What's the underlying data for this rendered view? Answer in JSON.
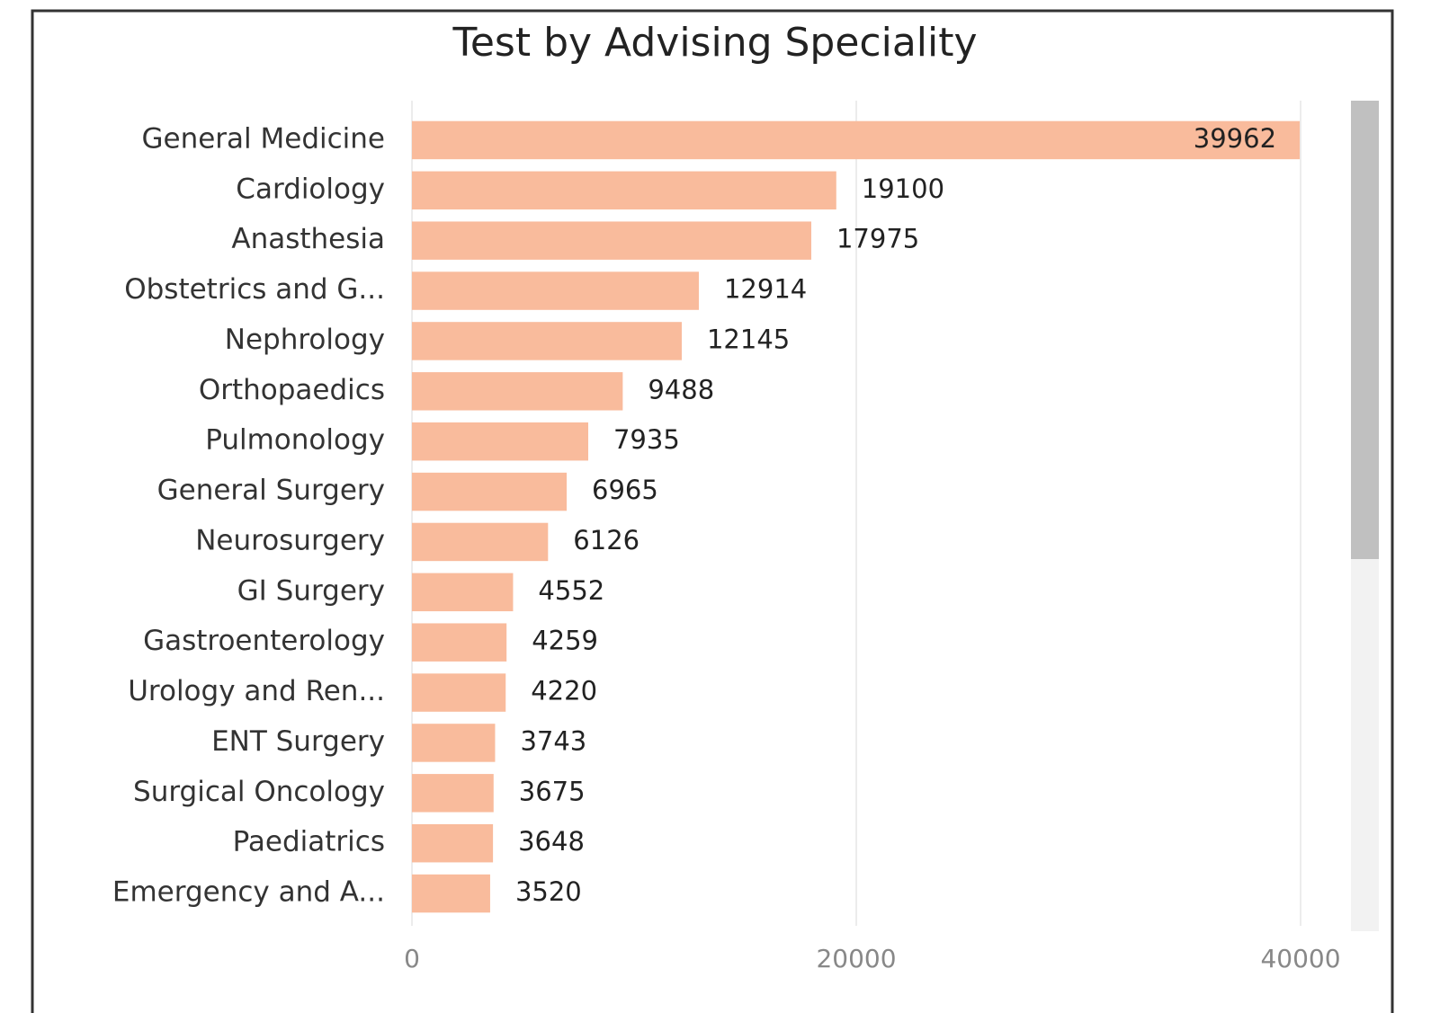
{
  "chart_data": {
    "type": "bar",
    "orientation": "horizontal",
    "title": "Test by Advising Speciality",
    "categories": [
      "General Medicine",
      "Cardiology",
      "Anasthesia",
      "Obstetrics and G...",
      "Nephrology",
      "Orthopaedics",
      "Pulmonology",
      "General Surgery",
      "Neurosurgery",
      "GI Surgery",
      "Gastroenterology",
      "Urology and Ren...",
      "ENT Surgery",
      "Surgical Oncology",
      "Paediatrics",
      "Emergency and A..."
    ],
    "values": [
      39962,
      19100,
      17975,
      12914,
      12145,
      9488,
      7935,
      6965,
      6126,
      4552,
      4259,
      4220,
      3743,
      3675,
      3648,
      3520
    ],
    "color": "#f9bb9c",
    "xlim": [
      0,
      40000
    ],
    "xticks": [
      0,
      20000,
      40000
    ],
    "grid": true
  }
}
